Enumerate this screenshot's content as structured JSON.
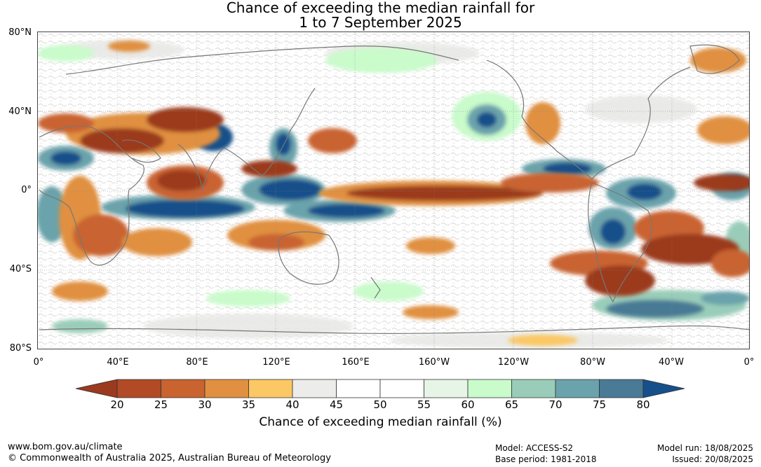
{
  "title": {
    "line1": "Chance of exceeding the median rainfall for",
    "line2": "1 to 7 September 2025"
  },
  "map": {
    "lat_labels": [
      "80°N",
      "40°N",
      "0°",
      "40°S",
      "80°S"
    ],
    "lon_labels": [
      "0°",
      "40°E",
      "80°E",
      "120°E",
      "160°E",
      "160°W",
      "120°W",
      "80°W",
      "40°W",
      "0°"
    ]
  },
  "colorbar": {
    "ticks": [
      "20",
      "25",
      "30",
      "35",
      "40",
      "45",
      "50",
      "55",
      "60",
      "65",
      "70",
      "75",
      "80"
    ],
    "colors": [
      "#9b3a1e",
      "#b14a25",
      "#c96330",
      "#e09040",
      "#fbc865",
      "#ececea",
      "#ffffff",
      "#ffffff",
      "#e7f5e7",
      "#c9fbcb",
      "#9acdb9",
      "#6aa3ab",
      "#4a7a95",
      "#15508a"
    ],
    "label": "Chance of exceeding median rainfall (%)"
  },
  "footer": {
    "website": "www.bom.gov.au/climate",
    "copyright": "© Commonwealth of Australia 2025, Australian Bureau of Meteorology",
    "model": "Model: ACCESS-S2",
    "base_period": "Base period: 1981-2018",
    "model_run": "Model run: 18/08/2025",
    "issued": "Issued: 20/08/2025"
  }
}
